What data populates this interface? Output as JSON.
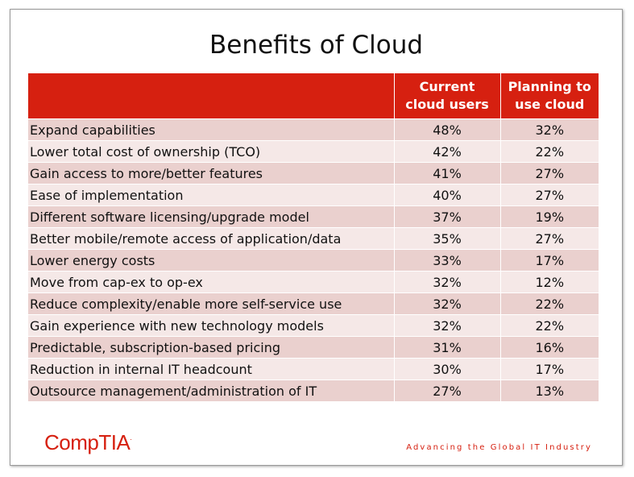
{
  "title": "Benefits of Cloud",
  "columns": {
    "benefit": "",
    "current_line1": "Current",
    "current_line2": "cloud users",
    "planning_line1": "Planning to",
    "planning_line2": "use cloud"
  },
  "rows": [
    {
      "benefit": "Expand capabilities",
      "current": "48%",
      "planning": "32%"
    },
    {
      "benefit": "Lower total cost of ownership (TCO)",
      "current": "42%",
      "planning": "22%"
    },
    {
      "benefit": "Gain access to more/better features",
      "current": "41%",
      "planning": "27%"
    },
    {
      "benefit": "Ease of implementation",
      "current": "40%",
      "planning": "27%"
    },
    {
      "benefit": "Different software licensing/upgrade model",
      "current": "37%",
      "planning": "19%"
    },
    {
      "benefit": "Better mobile/remote access of application/data",
      "current": "35%",
      "planning": "27%"
    },
    {
      "benefit": "Lower energy costs",
      "current": "33%",
      "planning": "17%"
    },
    {
      "benefit": "Move from cap-ex to op-ex",
      "current": "32%",
      "planning": "12%"
    },
    {
      "benefit": "Reduce complexity/enable more self-service use",
      "current": "32%",
      "planning": "22%"
    },
    {
      "benefit": "Gain experience with new technology models",
      "current": "32%",
      "planning": "22%"
    },
    {
      "benefit": "Predictable, subscription-based pricing",
      "current": "31%",
      "planning": "16%"
    },
    {
      "benefit": "Reduction in internal IT headcount",
      "current": "30%",
      "planning": "17%"
    },
    {
      "benefit": "Outsource management/administration of IT",
      "current": "27%",
      "planning": "13%"
    }
  ],
  "footer": {
    "logo_text": "CompTIA",
    "logo_mark": ".",
    "tagline": "Advancing the Global IT Industry"
  },
  "colors": {
    "header_bg": "#d62010",
    "row_dark": "#ead0ce",
    "row_light": "#f5e8e7",
    "brand": "#d62010"
  }
}
